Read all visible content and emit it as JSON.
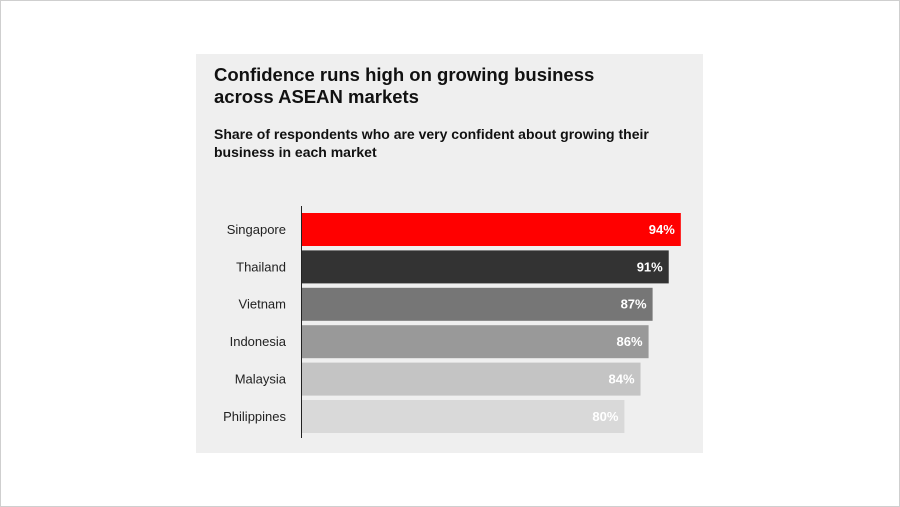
{
  "chart_data": {
    "type": "bar",
    "orientation": "horizontal",
    "title": "Confidence runs high on growing business across ASEAN markets",
    "subtitle": "Share of respondents who are very confident about growing their business in each market",
    "categories": [
      "Singapore",
      "Thailand",
      "Vietnam",
      "Indonesia",
      "Malaysia",
      "Philippines"
    ],
    "values": [
      94,
      91,
      87,
      86,
      84,
      80
    ],
    "value_labels": [
      "94%",
      "91%",
      "87%",
      "86%",
      "84%",
      "80%"
    ],
    "colors": [
      "#ff0000",
      "#333333",
      "#767676",
      "#999999",
      "#c4c4c4",
      "#d9d9d9"
    ]
  }
}
